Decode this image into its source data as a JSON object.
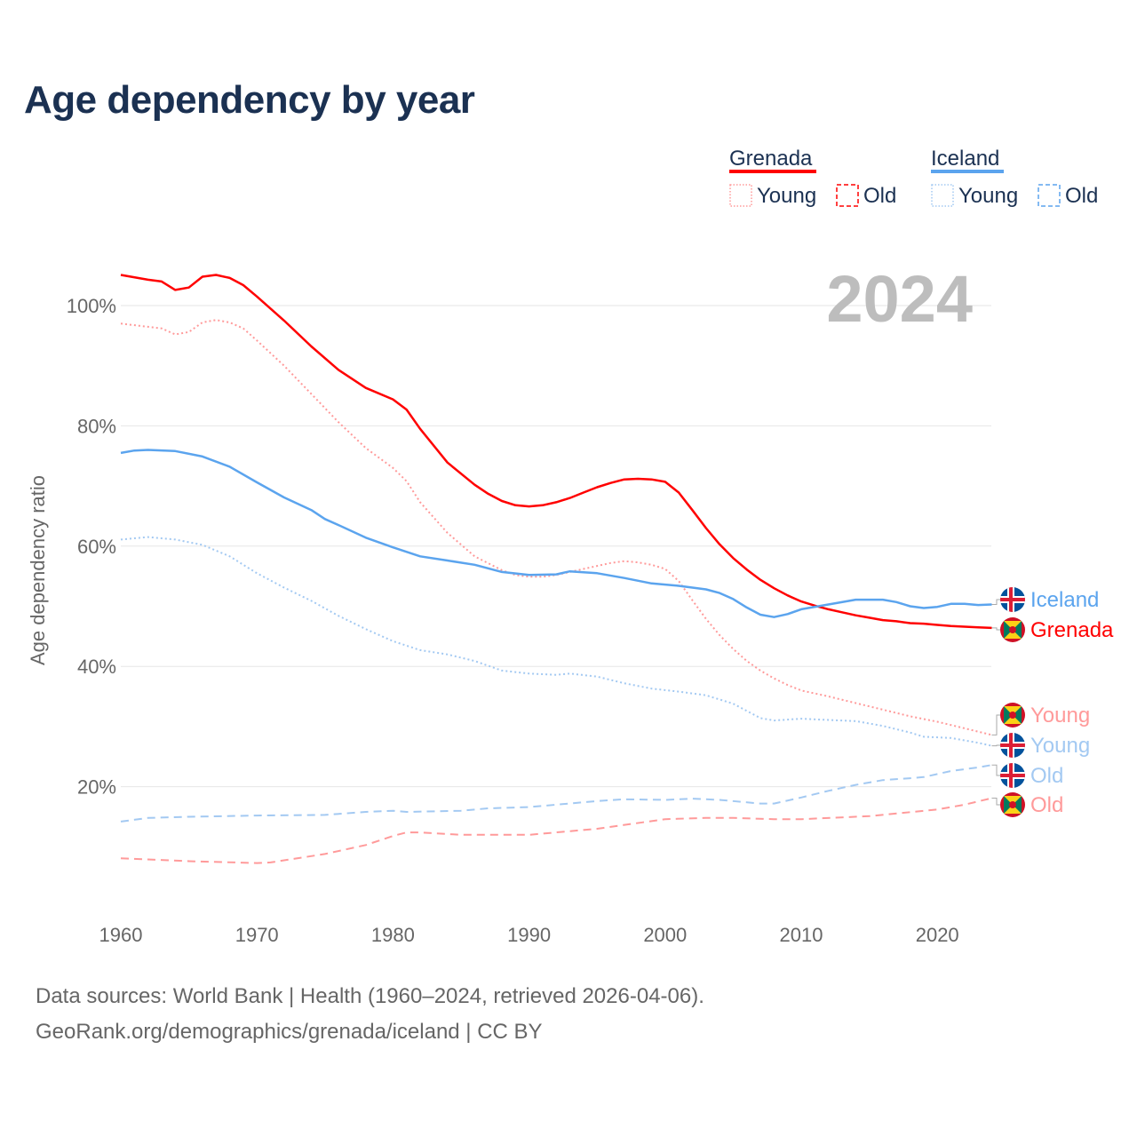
{
  "title": "Age dependency by year",
  "year_watermark": "2024",
  "legend": {
    "groups": [
      {
        "country": "Grenada",
        "color": "#ff0000",
        "light": "#ff9a9a",
        "items": [
          "Young",
          "Old"
        ]
      },
      {
        "country": "Iceland",
        "color": "#5ba4ee",
        "light": "#a3c9f2",
        "items": [
          "Young",
          "Old"
        ]
      }
    ]
  },
  "footer": {
    "line1": "Data sources: World Bank | Health (1960–2024, retrieved 2026-04-06).",
    "line2": "GeoRank.org/demographics/grenada/iceland | CC BY"
  },
  "chart_data": {
    "type": "line",
    "title": "Age dependency by year",
    "xlabel": "",
    "ylabel": "Age dependency ratio",
    "xlim": [
      1960,
      2024
    ],
    "ylim": [
      0,
      110
    ],
    "x_ticks": [
      "1960",
      "1970",
      "1980",
      "1990",
      "2000",
      "2010",
      "2020"
    ],
    "y_ticks": [
      "20%",
      "40%",
      "60%",
      "80%",
      "100%"
    ],
    "grid": true,
    "legend_position": "top-right",
    "series": [
      {
        "name": "Grenada",
        "style": "solid",
        "color": "#ff0000",
        "end_label": "Grenada",
        "points": [
          [
            1960,
            105.1
          ],
          [
            1962,
            104.3
          ],
          [
            1963,
            104
          ],
          [
            1964,
            102.6
          ],
          [
            1965,
            103
          ],
          [
            1966,
            104.8
          ],
          [
            1967,
            105.1
          ],
          [
            1968,
            104.6
          ],
          [
            1969,
            103.4
          ],
          [
            1970,
            101.5
          ],
          [
            1972,
            97.5
          ],
          [
            1974,
            93.2
          ],
          [
            1976,
            89.3
          ],
          [
            1978,
            86.3
          ],
          [
            1980,
            84.4
          ],
          [
            1981,
            82.7
          ],
          [
            1982,
            79.5
          ],
          [
            1984,
            73.9
          ],
          [
            1986,
            70.2
          ],
          [
            1987,
            68.7
          ],
          [
            1988,
            67.5
          ],
          [
            1989,
            66.8
          ],
          [
            1990,
            66.6
          ],
          [
            1991,
            66.8
          ],
          [
            1992,
            67.3
          ],
          [
            1993,
            68
          ],
          [
            1994,
            68.9
          ],
          [
            1995,
            69.8
          ],
          [
            1996,
            70.5
          ],
          [
            1997,
            71.1
          ],
          [
            1998,
            71.2
          ],
          [
            1999,
            71.1
          ],
          [
            2000,
            70.7
          ],
          [
            2001,
            68.9
          ],
          [
            2002,
            66
          ],
          [
            2003,
            63
          ],
          [
            2004,
            60.3
          ],
          [
            2005,
            58
          ],
          [
            2006,
            56.1
          ],
          [
            2007,
            54.4
          ],
          [
            2008,
            53
          ],
          [
            2009,
            51.8
          ],
          [
            2010,
            50.8
          ],
          [
            2011,
            50.1
          ],
          [
            2012,
            49.5
          ],
          [
            2013,
            49
          ],
          [
            2014,
            48.5
          ],
          [
            2015,
            48.1
          ],
          [
            2016,
            47.7
          ],
          [
            2017,
            47.5
          ],
          [
            2018,
            47.2
          ],
          [
            2019,
            47.1
          ],
          [
            2020,
            46.9
          ],
          [
            2021,
            46.7
          ],
          [
            2022,
            46.6
          ],
          [
            2023,
            46.5
          ],
          [
            2024,
            46.4
          ]
        ]
      },
      {
        "name": "Grenada Young",
        "style": "dotted",
        "color": "#ff9a9a",
        "end_label": "Young",
        "points": [
          [
            1960,
            97
          ],
          [
            1963,
            96.2
          ],
          [
            1964,
            95.2
          ],
          [
            1965,
            95.6
          ],
          [
            1966,
            97.2
          ],
          [
            1967,
            97.6
          ],
          [
            1968,
            97.2
          ],
          [
            1969,
            96.2
          ],
          [
            1970,
            94.2
          ],
          [
            1972,
            90
          ],
          [
            1974,
            85.3
          ],
          [
            1976,
            80.6
          ],
          [
            1978,
            76.3
          ],
          [
            1980,
            73
          ],
          [
            1981,
            70.8
          ],
          [
            1982,
            67.3
          ],
          [
            1984,
            62.2
          ],
          [
            1986,
            58.3
          ],
          [
            1988,
            56
          ],
          [
            1989,
            55.2
          ],
          [
            1990,
            54.9
          ],
          [
            1991,
            54.9
          ],
          [
            1992,
            55.2
          ],
          [
            1993,
            55.7
          ],
          [
            1994,
            56.2
          ],
          [
            1995,
            56.7
          ],
          [
            1996,
            57.2
          ],
          [
            1997,
            57.5
          ],
          [
            1998,
            57.3
          ],
          [
            1999,
            56.9
          ],
          [
            2000,
            56.2
          ],
          [
            2001,
            54.2
          ],
          [
            2002,
            51
          ],
          [
            2003,
            47.9
          ],
          [
            2004,
            45.2
          ],
          [
            2005,
            42.9
          ],
          [
            2006,
            40.9
          ],
          [
            2007,
            39.3
          ],
          [
            2008,
            38
          ],
          [
            2009,
            36.9
          ],
          [
            2010,
            36
          ],
          [
            2012,
            35
          ],
          [
            2014,
            33.9
          ],
          [
            2016,
            32.8
          ],
          [
            2018,
            31.7
          ],
          [
            2020,
            30.8
          ],
          [
            2022,
            29.7
          ],
          [
            2024,
            28.6
          ]
        ]
      },
      {
        "name": "Grenada Old",
        "style": "dashed",
        "color": "#ff9a9a",
        "end_label": "Old",
        "points": [
          [
            1960,
            8.1
          ],
          [
            1965,
            7.6
          ],
          [
            1970,
            7.3
          ],
          [
            1971,
            7.4
          ],
          [
            1975,
            8.8
          ],
          [
            1978,
            10.3
          ],
          [
            1980,
            11.8
          ],
          [
            1981,
            12.4
          ],
          [
            1982,
            12.4
          ],
          [
            1985,
            12
          ],
          [
            1990,
            12
          ],
          [
            1995,
            13
          ],
          [
            2000,
            14.6
          ],
          [
            2003,
            14.8
          ],
          [
            2005,
            14.8
          ],
          [
            2008,
            14.6
          ],
          [
            2010,
            14.6
          ],
          [
            2015,
            15.1
          ],
          [
            2020,
            16.2
          ],
          [
            2022,
            17
          ],
          [
            2024,
            18.1
          ]
        ]
      },
      {
        "name": "Iceland",
        "style": "solid",
        "color": "#5ba4ee",
        "end_label": "Iceland",
        "points": [
          [
            1960,
            75.5
          ],
          [
            1961,
            75.9
          ],
          [
            1962,
            76
          ],
          [
            1964,
            75.8
          ],
          [
            1966,
            74.9
          ],
          [
            1968,
            73.2
          ],
          [
            1970,
            70.6
          ],
          [
            1972,
            68.1
          ],
          [
            1974,
            66
          ],
          [
            1975,
            64.5
          ],
          [
            1976,
            63.5
          ],
          [
            1978,
            61.4
          ],
          [
            1980,
            59.8
          ],
          [
            1982,
            58.3
          ],
          [
            1984,
            57.6
          ],
          [
            1986,
            56.9
          ],
          [
            1988,
            55.7
          ],
          [
            1990,
            55.2
          ],
          [
            1992,
            55.3
          ],
          [
            1993,
            55.8
          ],
          [
            1995,
            55.5
          ],
          [
            1997,
            54.7
          ],
          [
            1999,
            53.8
          ],
          [
            2001,
            53.4
          ],
          [
            2003,
            52.8
          ],
          [
            2004,
            52.2
          ],
          [
            2005,
            51.2
          ],
          [
            2006,
            49.8
          ],
          [
            2007,
            48.6
          ],
          [
            2008,
            48.2
          ],
          [
            2009,
            48.7
          ],
          [
            2010,
            49.5
          ],
          [
            2012,
            50.3
          ],
          [
            2014,
            51.1
          ],
          [
            2016,
            51.1
          ],
          [
            2017,
            50.7
          ],
          [
            2018,
            50
          ],
          [
            2019,
            49.7
          ],
          [
            2020,
            49.9
          ],
          [
            2021,
            50.4
          ],
          [
            2022,
            50.4
          ],
          [
            2023,
            50.2
          ],
          [
            2024,
            50.3
          ]
        ]
      },
      {
        "name": "Iceland Young",
        "style": "dotted",
        "color": "#a3c9f2",
        "end_label": "Young",
        "points": [
          [
            1960,
            61.1
          ],
          [
            1962,
            61.5
          ],
          [
            1964,
            61.1
          ],
          [
            1966,
            60.2
          ],
          [
            1968,
            58.3
          ],
          [
            1970,
            55.5
          ],
          [
            1972,
            53.1
          ],
          [
            1974,
            50.9
          ],
          [
            1976,
            48.4
          ],
          [
            1978,
            46.2
          ],
          [
            1980,
            44.2
          ],
          [
            1982,
            42.7
          ],
          [
            1984,
            42
          ],
          [
            1986,
            40.9
          ],
          [
            1988,
            39.3
          ],
          [
            1990,
            38.8
          ],
          [
            1992,
            38.6
          ],
          [
            1993,
            38.8
          ],
          [
            1995,
            38.3
          ],
          [
            1997,
            37.2
          ],
          [
            1999,
            36.3
          ],
          [
            2001,
            35.8
          ],
          [
            2003,
            35.2
          ],
          [
            2005,
            33.8
          ],
          [
            2007,
            31.4
          ],
          [
            2008,
            31
          ],
          [
            2010,
            31.3
          ],
          [
            2012,
            31.1
          ],
          [
            2014,
            30.9
          ],
          [
            2016,
            30.1
          ],
          [
            2018,
            29
          ],
          [
            2019,
            28.3
          ],
          [
            2021,
            28.1
          ],
          [
            2023,
            27.3
          ],
          [
            2024,
            26.8
          ]
        ]
      },
      {
        "name": "Iceland Old",
        "style": "dashed",
        "color": "#a3c9f2",
        "end_label": "Old",
        "points": [
          [
            1960,
            14.2
          ],
          [
            1962,
            14.8
          ],
          [
            1965,
            15
          ],
          [
            1970,
            15.2
          ],
          [
            1975,
            15.3
          ],
          [
            1978,
            15.8
          ],
          [
            1980,
            16
          ],
          [
            1981,
            15.8
          ],
          [
            1985,
            16
          ],
          [
            1987,
            16.4
          ],
          [
            1990,
            16.6
          ],
          [
            1995,
            17.6
          ],
          [
            1997,
            17.9
          ],
          [
            2000,
            17.8
          ],
          [
            2002,
            18
          ],
          [
            2004,
            17.8
          ],
          [
            2007,
            17.2
          ],
          [
            2008,
            17.2
          ],
          [
            2010,
            18.2
          ],
          [
            2012,
            19.3
          ],
          [
            2014,
            20.3
          ],
          [
            2016,
            21.1
          ],
          [
            2018,
            21.4
          ],
          [
            2019,
            21.6
          ],
          [
            2021,
            22.6
          ],
          [
            2023,
            23.2
          ],
          [
            2024,
            23.6
          ]
        ]
      }
    ]
  }
}
